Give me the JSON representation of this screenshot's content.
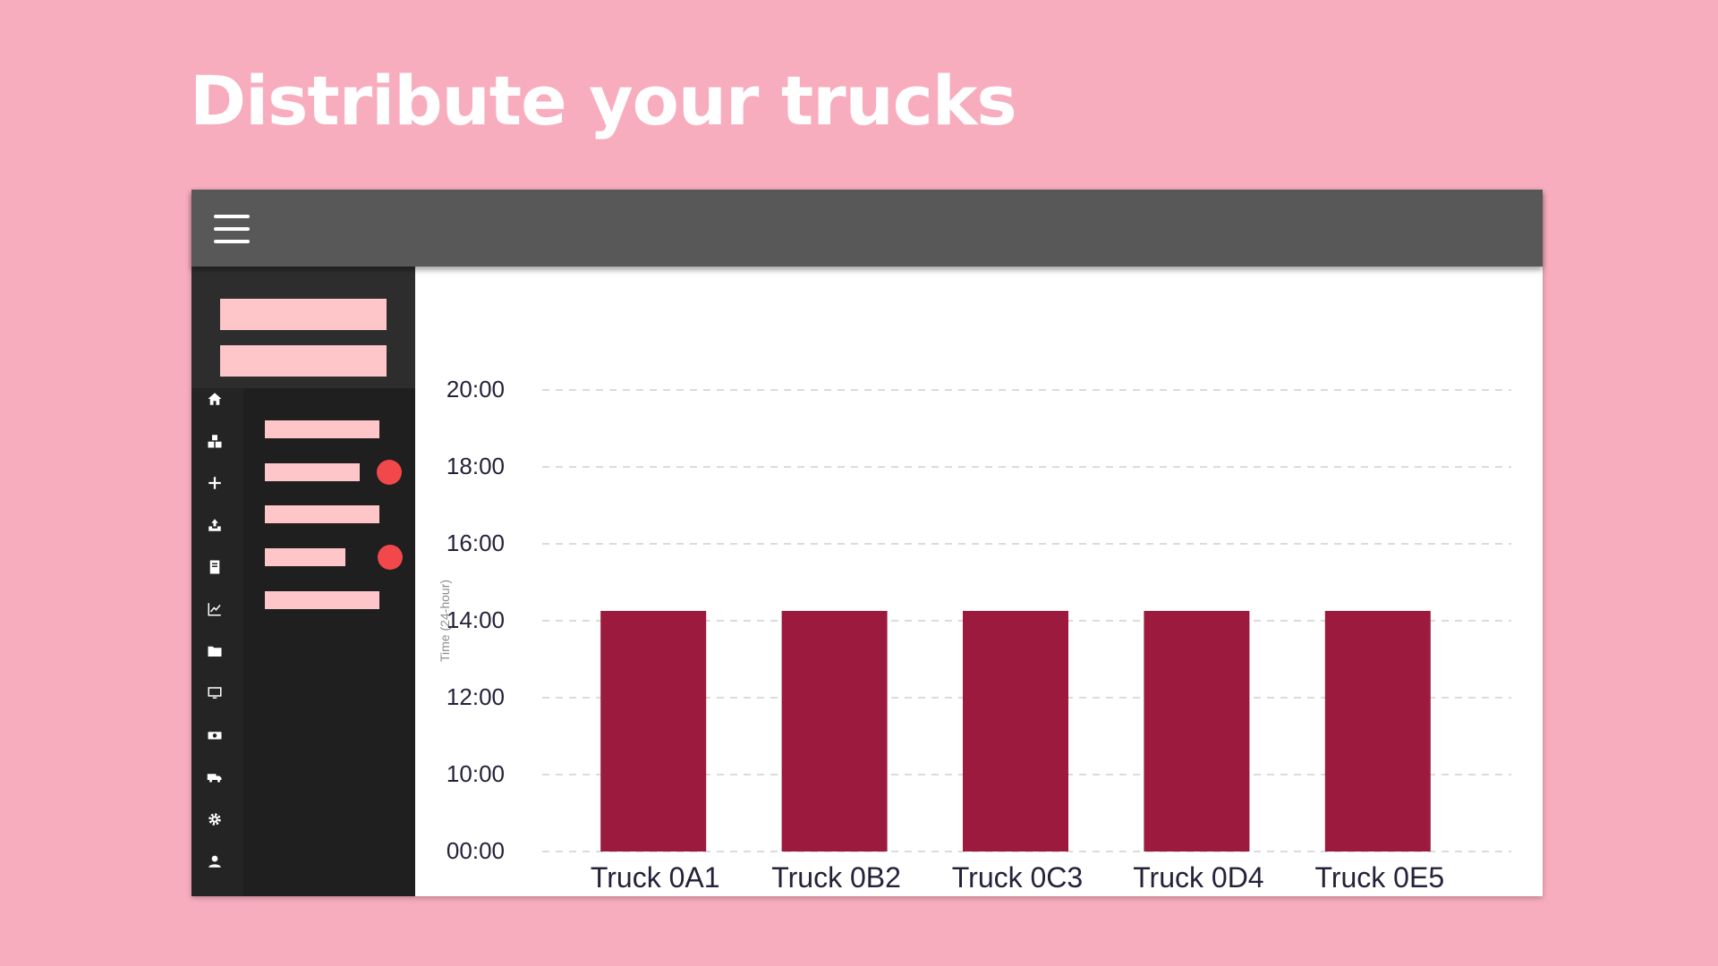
{
  "headline": "Distribute your trucks",
  "colors": {
    "background": "#f8adbe",
    "topbar": "#585858",
    "sidebar": "#2d2d2d",
    "accent_block": "#fec6c8",
    "notification": "#f2484b",
    "bar": "#9c1a3e"
  },
  "sidebar": {
    "rail_icons": [
      "home-icon",
      "boxes-icon",
      "plus-icon",
      "inbox-upload-icon",
      "book-icon",
      "line-chart-icon",
      "folder-icon",
      "monitor-icon",
      "cash-icon",
      "truck-icon",
      "gear-icon",
      "user-icon"
    ],
    "menu_items": [
      {
        "notification": false
      },
      {
        "notification": true
      },
      {
        "notification": false
      },
      {
        "notification": true
      },
      {
        "notification": false
      }
    ]
  },
  "chart_data": {
    "type": "bar",
    "title": "",
    "xlabel": "",
    "ylabel": "Time (24-hour)",
    "y_ticks": [
      "00:00",
      "10:00",
      "12:00",
      "14:00",
      "16:00",
      "18:00",
      "20:00"
    ],
    "categories": [
      "Truck 0A1",
      "Truck 0B2",
      "Truck 0C3",
      "Truck 0D4",
      "Truck 0E5"
    ],
    "values": [
      "14:00",
      "14:00",
      "14:00",
      "14:00",
      "14:00"
    ],
    "grid": true,
    "grid_style": "dashed"
  }
}
